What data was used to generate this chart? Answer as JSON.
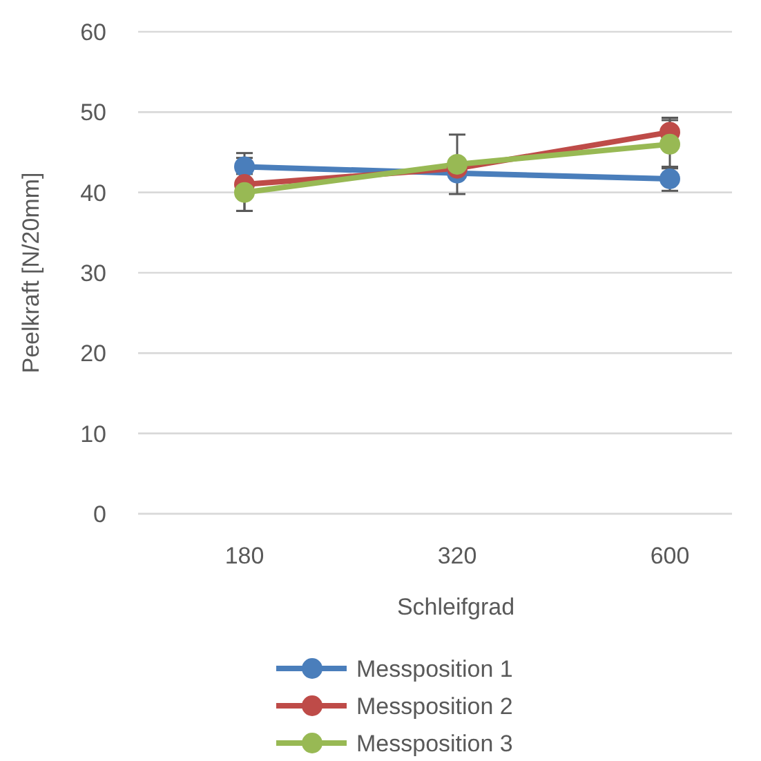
{
  "chart_data": {
    "type": "line",
    "xlabel": "Schleifgrad",
    "ylabel": "Peelkraft [N/20mm]",
    "categories": [
      "180",
      "320",
      "600"
    ],
    "series": [
      {
        "name": "Messposition 1",
        "color": "#4a7ebb",
        "values": [
          43.2,
          42.4,
          41.7
        ],
        "errors": [
          1.7,
          null,
          1.5
        ]
      },
      {
        "name": "Messposition 2",
        "color": "#be4b48",
        "values": [
          41.0,
          43.0,
          47.5
        ],
        "errors": [
          3.3,
          null,
          1.8
        ]
      },
      {
        "name": "Messposition 3",
        "color": "#98b954",
        "values": [
          40.0,
          43.5,
          46.0
        ],
        "errors": [
          2.3,
          3.7,
          3.0
        ]
      }
    ],
    "ylim": [
      0,
      60
    ],
    "yticks": [
      0,
      10,
      20,
      30,
      40,
      50,
      60
    ],
    "grid": "y",
    "legend": "bottom",
    "marker": "circle",
    "line_style": "solid"
  }
}
